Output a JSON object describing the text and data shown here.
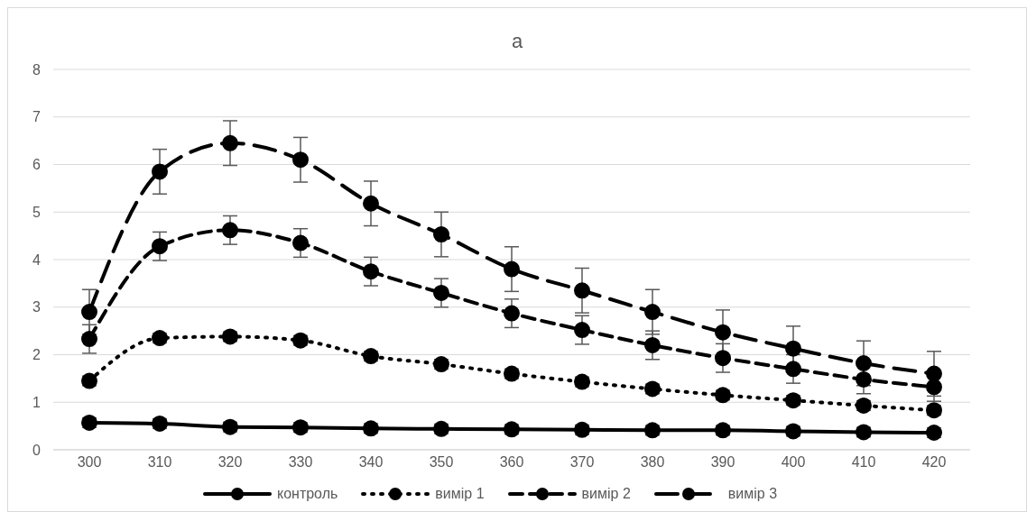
{
  "chart_data": {
    "type": "line",
    "title": "a",
    "categories": [
      "300",
      "310",
      "320",
      "330",
      "340",
      "350",
      "360",
      "370",
      "380",
      "390",
      "400",
      "410",
      "420"
    ],
    "series": [
      {
        "name": "контроль",
        "color": "#000000",
        "line_style": "solid",
        "values": [
          0.57,
          0.55,
          0.48,
          0.47,
          0.45,
          0.44,
          0.43,
          0.42,
          0.41,
          0.41,
          0.39,
          0.37,
          0.36
        ],
        "errors": [
          0.1,
          0.1,
          0.1,
          0.1,
          0.1,
          0.1,
          0.1,
          0.1,
          0.1,
          0.1,
          0.1,
          0.1,
          0.1
        ]
      },
      {
        "name": "вимір 1",
        "color": "#000000",
        "line_style": "dotted",
        "values": [
          1.45,
          2.35,
          2.38,
          2.3,
          1.97,
          1.8,
          1.6,
          1.43,
          1.28,
          1.15,
          1.04,
          0.93,
          0.83
        ],
        "errors": [
          0.1,
          0.1,
          0.1,
          0.1,
          0.1,
          0.1,
          0.1,
          0.1,
          0.1,
          0.1,
          0.1,
          0.1,
          0.1
        ]
      },
      {
        "name": "вимір 2",
        "color": "#000000",
        "line_style": "dashed",
        "values": [
          2.33,
          4.28,
          4.62,
          4.35,
          3.75,
          3.3,
          2.87,
          2.52,
          2.2,
          1.93,
          1.7,
          1.48,
          1.32
        ],
        "errors": [
          0.3,
          0.3,
          0.3,
          0.3,
          0.3,
          0.3,
          0.3,
          0.3,
          0.3,
          0.3,
          0.3,
          0.3,
          0.3
        ]
      },
      {
        "name": "вимір 3",
        "color": "#000000",
        "line_style": "dashed",
        "values": [
          2.9,
          5.85,
          6.45,
          6.1,
          5.18,
          4.53,
          3.8,
          3.35,
          2.9,
          2.47,
          2.13,
          1.82,
          1.6
        ],
        "errors": [
          0.47,
          0.47,
          0.47,
          0.47,
          0.47,
          0.47,
          0.47,
          0.47,
          0.47,
          0.47,
          0.47,
          0.47,
          0.47
        ]
      }
    ],
    "ylim": [
      0,
      8
    ],
    "yticks": [
      0,
      1,
      2,
      3,
      4,
      5,
      6,
      7,
      8
    ],
    "grid": "y",
    "legend": "bottom",
    "marker": "circle"
  }
}
